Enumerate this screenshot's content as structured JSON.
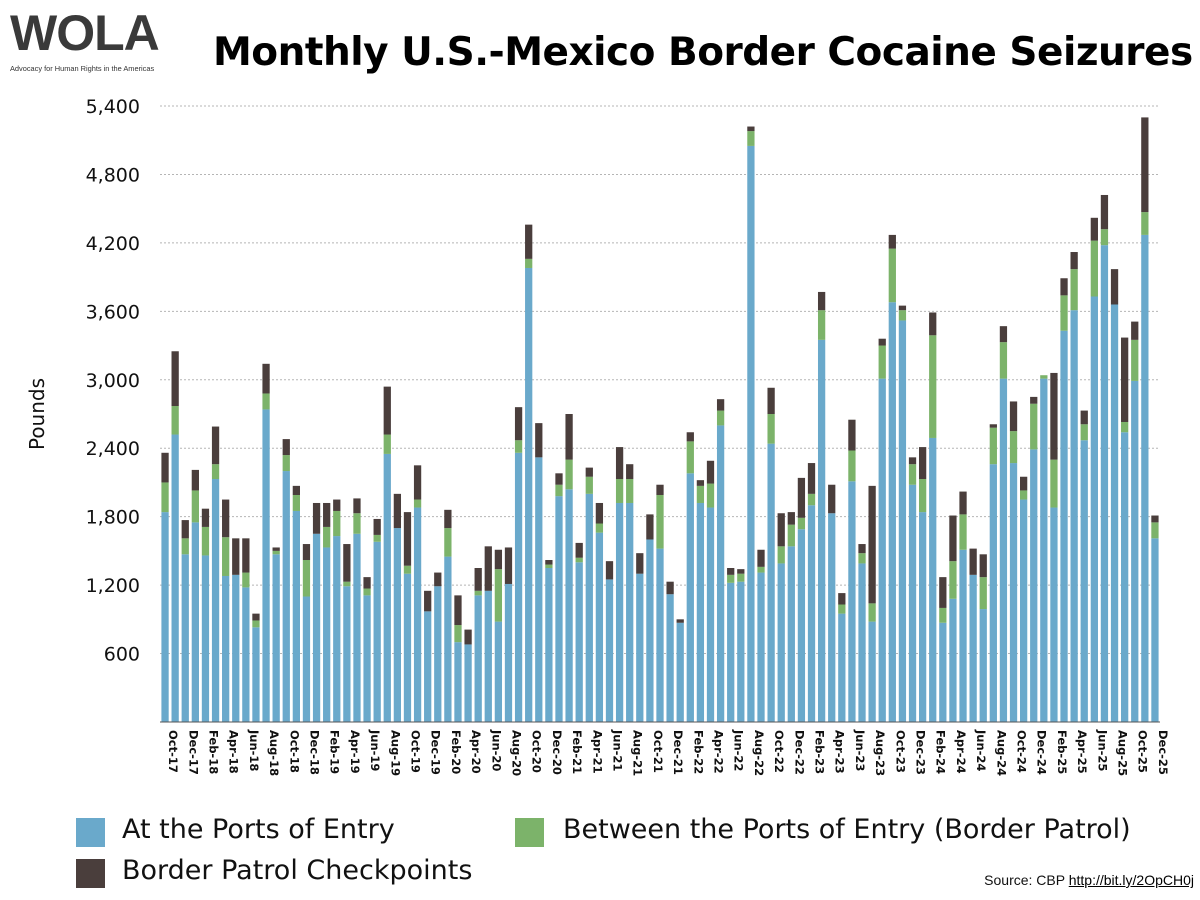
{
  "logo": {
    "wordmark": "WOLA",
    "tagline": "Advocacy for Human Rights in the Americas"
  },
  "source": {
    "label": "Source: CBP",
    "link": "http://bit.ly/2OpCH0j"
  },
  "chart_data": {
    "type": "bar",
    "stacked": true,
    "title": "Monthly U.S.-Mexico Border Cocaine Seizures",
    "ylabel": "Pounds",
    "xlabel": "",
    "ylim": [
      0,
      5400
    ],
    "yticks": [
      600,
      1200,
      1800,
      2400,
      3000,
      3600,
      4200,
      4800,
      5400
    ],
    "ytick_labels": [
      "600",
      "1,200",
      "1,800",
      "2,400",
      "3,000",
      "3,600",
      "4,200",
      "4,800",
      "5,400"
    ],
    "grid": true,
    "legend_position": "bottom",
    "categories": [
      "Oct-17",
      "Nov-17",
      "Dec-17",
      "Jan-18",
      "Feb-18",
      "Mar-18",
      "Apr-18",
      "May-18",
      "Jun-18",
      "Jul-18",
      "Aug-18",
      "Sep-18",
      "Oct-18",
      "Nov-18",
      "Dec-18",
      "Jan-19",
      "Feb-19",
      "Mar-19",
      "Apr-19",
      "May-19",
      "Jun-19",
      "Jul-19",
      "Aug-19",
      "Sep-19",
      "Oct-19",
      "Nov-19",
      "Dec-19",
      "Jan-20",
      "Feb-20",
      "Mar-20",
      "Apr-20",
      "May-20",
      "Jun-20",
      "Jul-20",
      "Aug-20",
      "Sep-20",
      "Oct-20",
      "Nov-20",
      "Dec-20",
      "Jan-21",
      "Feb-21",
      "Mar-21",
      "Apr-21",
      "May-21",
      "Jun-21",
      "Jul-21",
      "Aug-21",
      "Sep-21",
      "Oct-21",
      "Nov-21",
      "Dec-21",
      "Jan-22",
      "Feb-22",
      "Mar-22",
      "Apr-22",
      "May-22",
      "Jun-22",
      "Jul-22",
      "Aug-22",
      "Sep-22",
      "Oct-22",
      "Nov-22",
      "Dec-22",
      "Jan-23",
      "Feb-23",
      "Mar-23",
      "Apr-23",
      "May-23",
      "Jun-23",
      "Jul-23",
      "Aug-23",
      "Sep-23",
      "Oct-23",
      "Nov-23",
      "Dec-23",
      "Jan-24",
      "Feb-24",
      "Mar-24",
      "Apr-24",
      "May-24",
      "Jun-24",
      "Jul-24",
      "Aug-24",
      "Sep-24",
      "Oct-24",
      "Nov-24",
      "Dec-24",
      "Jan-25",
      "Feb-25",
      "Mar-25",
      "Apr-25",
      "May-25",
      "Jun-25",
      "Jul-25",
      "Aug-25",
      "Sep-25",
      "Oct-25",
      "Nov-25",
      "Dec-25"
    ],
    "x_tick_labels": [
      "Oct-17",
      "Dec-17",
      "Feb-18",
      "Apr-18",
      "Jun-18",
      "Aug-18",
      "Oct-18",
      "Dec-18",
      "Feb-19",
      "Apr-19",
      "Jun-19",
      "Aug-19",
      "Oct-19",
      "Dec-19",
      "Feb-20",
      "Apr-20",
      "Jun-20",
      "Aug-20",
      "Oct-20",
      "Dec-20",
      "Feb-21",
      "Apr-21",
      "Jun-21",
      "Aug-21",
      "Oct-21",
      "Dec-21",
      "Feb-22",
      "Apr-22",
      "Jun-22",
      "Aug-22",
      "Oct-22",
      "Dec-22",
      "Feb-23",
      "Apr-23",
      "Jun-23",
      "Aug-23",
      "Oct-23",
      "Dec-23",
      "Feb-24",
      "Apr-24",
      "Jun-24",
      "Aug-24",
      "Oct-24",
      "Dec-24",
      "Feb-25",
      "Apr-25",
      "Jun-25",
      "Aug-25",
      "Oct-25",
      "Dec-25"
    ],
    "series": [
      {
        "name": "At the Ports of Entry",
        "color": "#6aa9cb",
        "values": [
          1840,
          2520,
          1470,
          1750,
          1460,
          2130,
          1280,
          1290,
          1180,
          830,
          2740,
          1470,
          2200,
          1850,
          1100,
          1650,
          1530,
          1630,
          1190,
          1650,
          1110,
          1580,
          2350,
          1700,
          1300,
          1880,
          970,
          1190,
          1450,
          700,
          680,
          1110,
          1150,
          880,
          1210,
          2360,
          3980,
          2320,
          1350,
          1980,
          2040,
          1400,
          2000,
          1660,
          1250,
          1920,
          1920,
          1300,
          1600,
          1520,
          1120,
          870,
          2180,
          1920,
          1880,
          2600,
          1220,
          1230,
          5050,
          1310,
          2440,
          1390,
          1540,
          1690,
          1900,
          3350,
          1830,
          950,
          2110,
          1390,
          880,
          3010,
          3680,
          3520,
          2080,
          1840,
          2490,
          870,
          1080,
          1510,
          1290,
          990,
          2260,
          3010,
          2270,
          1950,
          2390,
          3010,
          1880,
          3430,
          3610,
          2470,
          3730,
          4180,
          3660,
          2540,
          2990,
          4270,
          1610
        ]
      },
      {
        "name": "Between the Ports of Entry (Border Patrol)",
        "color": "#7cb36a",
        "values": [
          260,
          250,
          140,
          280,
          250,
          130,
          340,
          0,
          130,
          60,
          140,
          30,
          140,
          140,
          320,
          0,
          180,
          220,
          40,
          180,
          60,
          60,
          170,
          0,
          70,
          70,
          0,
          0,
          250,
          150,
          0,
          40,
          0,
          460,
          0,
          110,
          80,
          0,
          30,
          100,
          260,
          40,
          150,
          80,
          0,
          210,
          210,
          0,
          0,
          470,
          0,
          0,
          280,
          150,
          210,
          130,
          70,
          70,
          130,
          50,
          260,
          150,
          190,
          100,
          100,
          260,
          0,
          80,
          270,
          90,
          160,
          290,
          470,
          90,
          180,
          290,
          900,
          130,
          330,
          310,
          0,
          280,
          320,
          320,
          280,
          80,
          400,
          30,
          420,
          310,
          360,
          140,
          490,
          140,
          0,
          90,
          360,
          200,
          140
        ]
      },
      {
        "name": "Border Patrol Checkpoints",
        "color": "#4a3e3c",
        "values": [
          260,
          480,
          160,
          180,
          160,
          330,
          330,
          320,
          300,
          60,
          260,
          30,
          140,
          80,
          140,
          270,
          210,
          100,
          330,
          130,
          100,
          140,
          420,
          300,
          470,
          300,
          180,
          120,
          160,
          260,
          130,
          200,
          390,
          170,
          320,
          290,
          300,
          300,
          40,
          100,
          400,
          130,
          80,
          180,
          160,
          280,
          130,
          180,
          220,
          90,
          110,
          30,
          80,
          50,
          200,
          100,
          60,
          40,
          40,
          150,
          230,
          290,
          110,
          350,
          270,
          160,
          250,
          100,
          270,
          80,
          1030,
          60,
          120,
          40,
          60,
          280,
          200,
          270,
          400,
          200,
          230,
          200,
          30,
          140,
          260,
          120,
          60,
          0,
          760,
          150,
          150,
          120,
          200,
          300,
          310,
          740,
          160,
          830,
          60
        ]
      }
    ]
  }
}
